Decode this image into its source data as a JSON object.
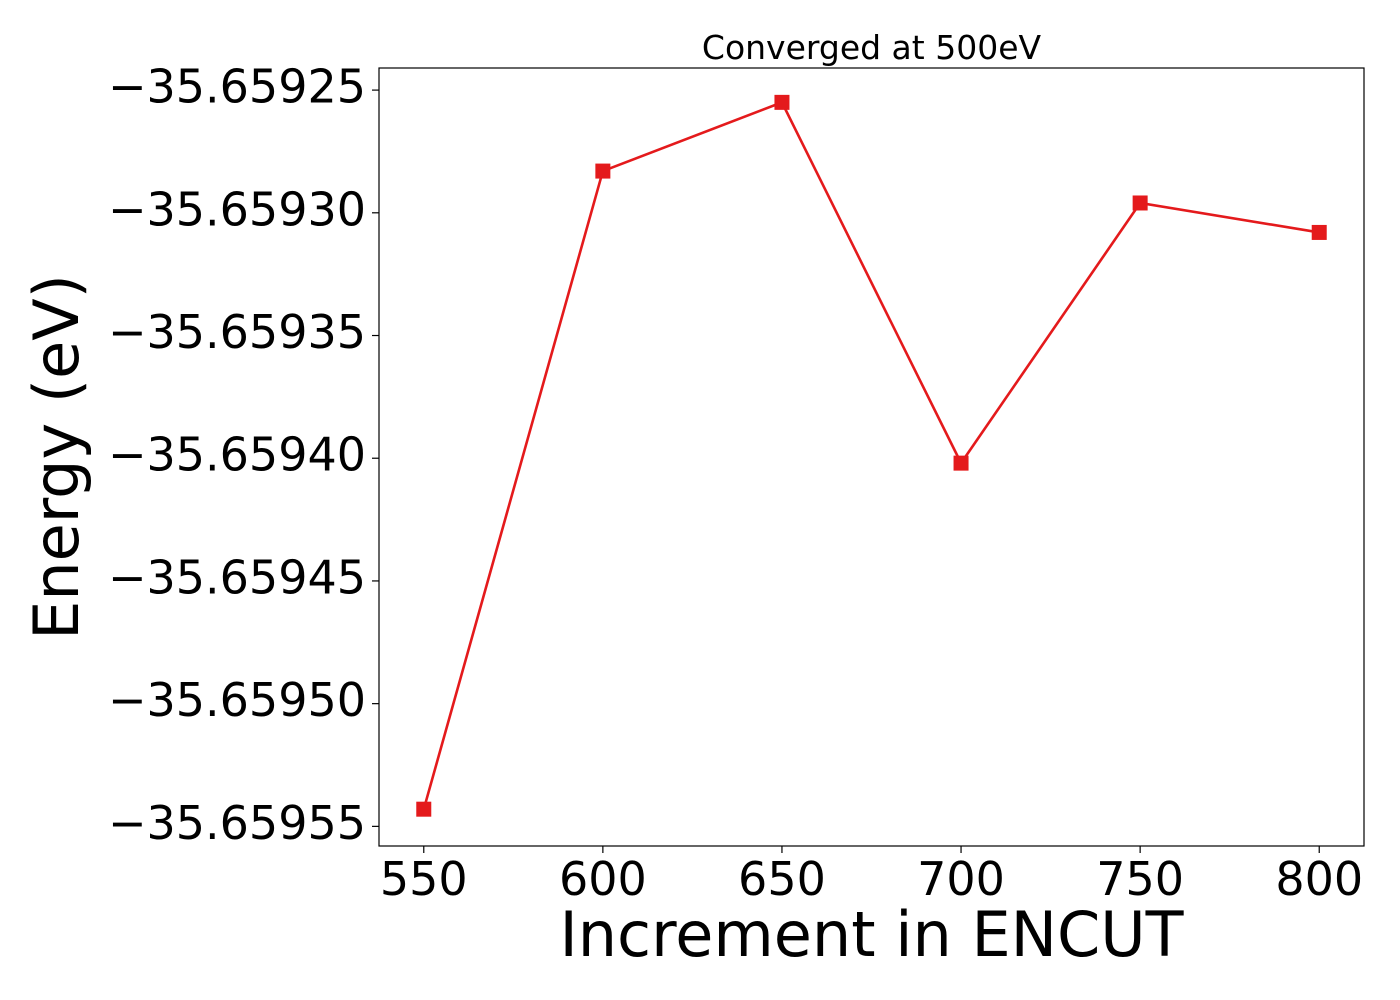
{
  "chart_data": {
    "type": "line",
    "title": "Converged at 500eV",
    "xlabel": "Increment in ENCUT",
    "ylabel": "Energy (eV)",
    "x": [
      550,
      600,
      650,
      700,
      750,
      800
    ],
    "series": [
      {
        "values": [
          -35.659543,
          -35.659283,
          -35.659255,
          -35.659402,
          -35.659296,
          -35.659308
        ],
        "color": "#e41a1c",
        "marker": "square"
      }
    ],
    "xticks": [
      550,
      600,
      650,
      700,
      750,
      800
    ],
    "xtick_labels": [
      "550",
      "600",
      "650",
      "700",
      "750",
      "800"
    ],
    "yticks": [
      -35.65925,
      -35.6593,
      -35.65935,
      -35.6594,
      -35.65945,
      -35.6595,
      -35.65955
    ],
    "ytick_labels": [
      "−35.65925",
      "−35.65930",
      "−35.65935",
      "−35.65940",
      "−35.65945",
      "−35.65950",
      "−35.65955"
    ],
    "xlim": [
      537.5,
      812.5
    ],
    "ylim": [
      -35.659558,
      -35.659241
    ],
    "grid": false,
    "legend": false
  }
}
